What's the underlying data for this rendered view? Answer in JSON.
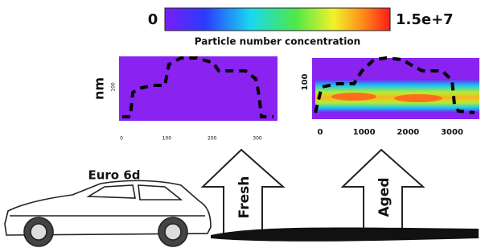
{
  "colorbar": {
    "min": "0",
    "max": "1.5e+7",
    "label": "Particle number concentration"
  },
  "panels": [
    {
      "y_label": "nm",
      "y_tick": "100",
      "x_ticks": [
        "0",
        "100",
        "200",
        "300"
      ]
    },
    {
      "y_tick": "100",
      "x_ticks": [
        "0",
        "1000",
        "2000",
        "3000"
      ]
    }
  ],
  "vehicle": {
    "label": "Euro 6d"
  },
  "arrows": [
    "Fresh",
    "Aged"
  ]
}
